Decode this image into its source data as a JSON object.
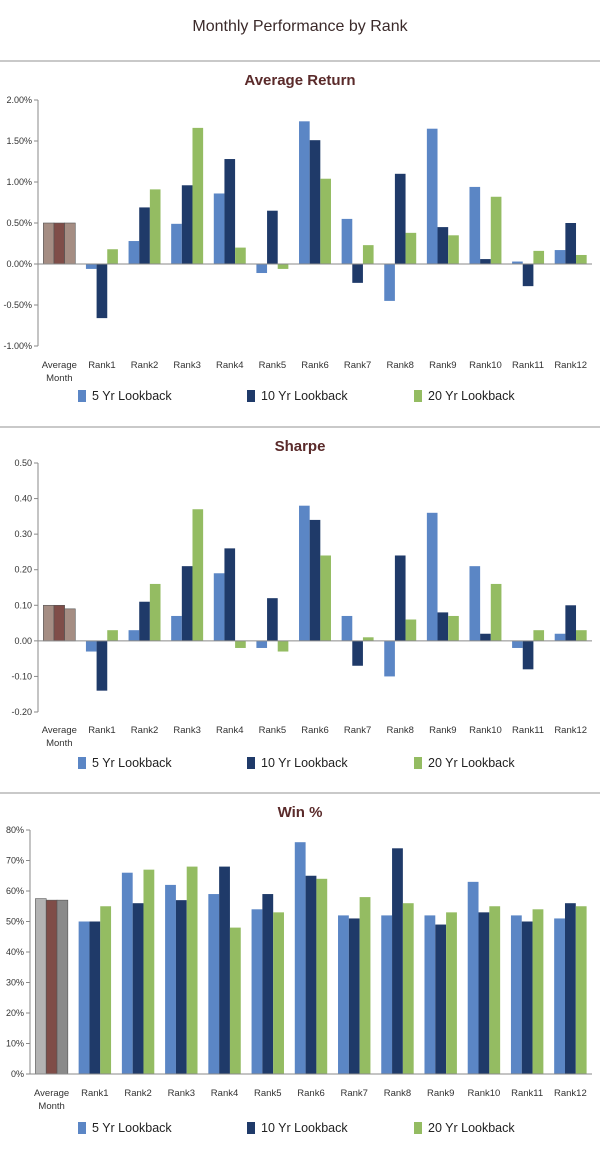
{
  "page_title": "Monthly Performance by Rank",
  "colors": {
    "avg_a": "#a58d83",
    "avg_b": "#7f4d48",
    "avg_c": "#a58d83",
    "avg_win_a": "#b3b3b3",
    "avg_win_b": "#7f4d48",
    "avg_win_c": "#8a8a8a",
    "s5": "#5b86c5",
    "s10": "#1f3a69",
    "s20": "#94bc62",
    "axis": "#8a8a8a",
    "grid": "none"
  },
  "chart_data": [
    {
      "type": "bar",
      "title": "Average Return",
      "categories": [
        "Average Month",
        "Rank1",
        "Rank2",
        "Rank3",
        "Rank4",
        "Rank5",
        "Rank6",
        "Rank7",
        "Rank8",
        "Rank9",
        "Rank10",
        "Rank11",
        "Rank12"
      ],
      "average_values": [
        0.5,
        0.5,
        0.5
      ],
      "series": [
        {
          "name": "5 Yr Lookback",
          "values": [
            null,
            -0.06,
            0.28,
            0.49,
            0.86,
            -0.11,
            1.74,
            0.55,
            -0.45,
            1.65,
            0.94,
            0.03,
            0.17
          ]
        },
        {
          "name": "10 Yr Lookback",
          "values": [
            null,
            -0.66,
            0.69,
            0.96,
            1.28,
            0.65,
            1.51,
            -0.23,
            1.1,
            0.45,
            0.06,
            -0.27,
            0.5
          ]
        },
        {
          "name": "20 Yr Lookback",
          "values": [
            null,
            0.18,
            0.91,
            1.66,
            0.2,
            -0.06,
            1.04,
            0.23,
            0.38,
            0.35,
            0.82,
            0.16,
            0.11
          ]
        }
      ],
      "ylim": [
        -1.0,
        2.0
      ],
      "yticks": [
        2.0,
        1.5,
        1.0,
        0.5,
        0.0,
        -0.5,
        -1.0
      ],
      "ytick_labels": [
        "2.00%",
        "1.50%",
        "1.00%",
        "0.50%",
        "0.00%",
        "-0.50%",
        "-1.00%"
      ],
      "legend": "bottom"
    },
    {
      "type": "bar",
      "title": "Sharpe",
      "categories": [
        "Average Month",
        "Rank1",
        "Rank2",
        "Rank3",
        "Rank4",
        "Rank5",
        "Rank6",
        "Rank7",
        "Rank8",
        "Rank9",
        "Rank10",
        "Rank11",
        "Rank12"
      ],
      "average_values": [
        0.1,
        0.1,
        0.09
      ],
      "series": [
        {
          "name": "5 Yr Lookback",
          "values": [
            null,
            -0.03,
            0.03,
            0.07,
            0.19,
            -0.02,
            0.38,
            0.07,
            -0.1,
            0.36,
            0.21,
            -0.02,
            0.02
          ]
        },
        {
          "name": "10 Yr Lookback",
          "values": [
            null,
            -0.14,
            0.11,
            0.21,
            0.26,
            0.12,
            0.34,
            -0.07,
            0.24,
            0.08,
            0.02,
            -0.08,
            0.1
          ]
        },
        {
          "name": "20 Yr Lookback",
          "values": [
            null,
            0.03,
            0.16,
            0.37,
            -0.02,
            -0.03,
            0.24,
            0.01,
            0.06,
            0.07,
            0.16,
            0.03,
            0.03
          ]
        }
      ],
      "ylim": [
        -0.2,
        0.5
      ],
      "yticks": [
        0.5,
        0.4,
        0.3,
        0.2,
        0.1,
        0.0,
        -0.1,
        -0.2
      ],
      "ytick_labels": [
        "0.50",
        "0.40",
        "0.30",
        "0.20",
        "0.10",
        "0.00",
        "-0.10",
        "-0.20"
      ],
      "legend": "bottom"
    },
    {
      "type": "bar",
      "title": "Win %",
      "categories": [
        "Average Month",
        "Rank1",
        "Rank2",
        "Rank3",
        "Rank4",
        "Rank5",
        "Rank6",
        "Rank7",
        "Rank8",
        "Rank9",
        "Rank10",
        "Rank11",
        "Rank12"
      ],
      "average_values": [
        57.5,
        57.0,
        57.0
      ],
      "series": [
        {
          "name": "5 Yr Lookback",
          "values": [
            null,
            50,
            66,
            62,
            59,
            54,
            76,
            52,
            52,
            52,
            63,
            52,
            51
          ]
        },
        {
          "name": "10 Yr Lookback",
          "values": [
            null,
            50,
            56,
            57,
            68,
            59,
            65,
            51,
            74,
            49,
            53,
            50,
            56
          ]
        },
        {
          "name": "20 Yr Lookback",
          "values": [
            null,
            55,
            67,
            68,
            48,
            53,
            64,
            58,
            56,
            53,
            55,
            54,
            55
          ]
        }
      ],
      "ylim": [
        0,
        80
      ],
      "yticks": [
        80,
        70,
        60,
        50,
        40,
        30,
        20,
        10,
        0
      ],
      "ytick_labels": [
        "80%",
        "70%",
        "60%",
        "50%",
        "40%",
        "30%",
        "20%",
        "10%",
        "0%"
      ],
      "legend": "bottom"
    }
  ]
}
